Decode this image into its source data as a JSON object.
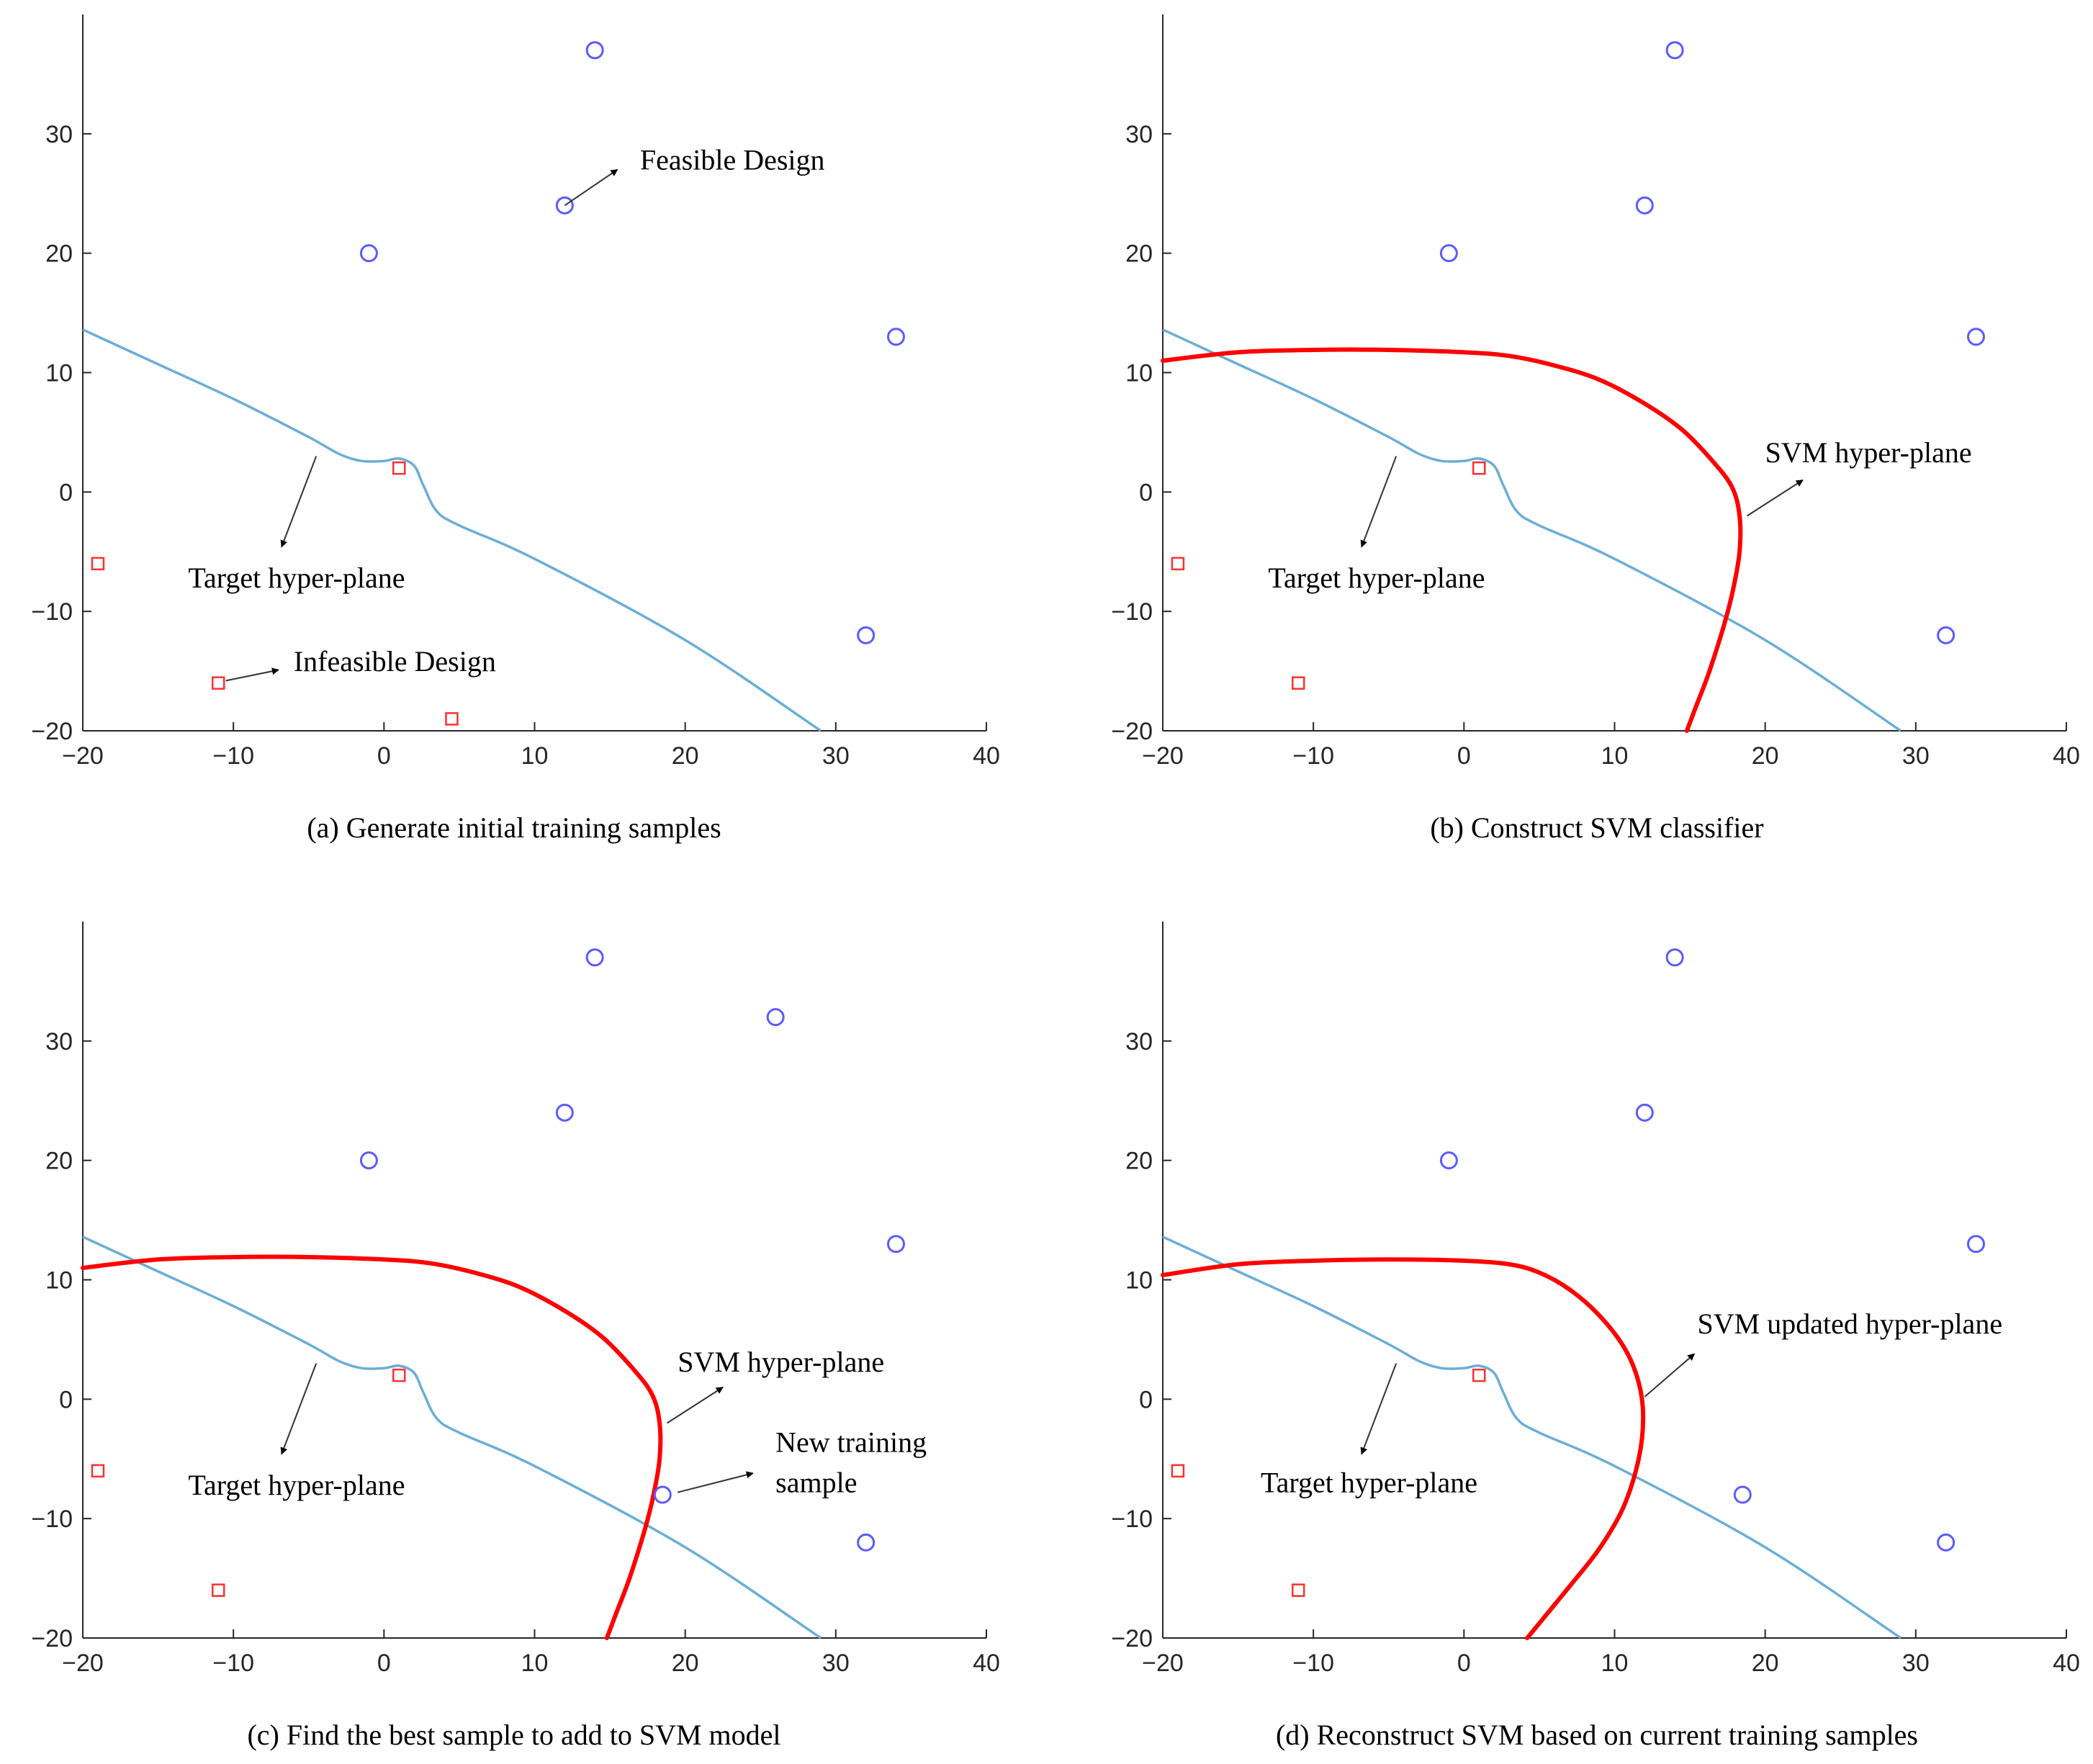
{
  "colors": {
    "target": "#6baed6",
    "svm": "#ff0000",
    "feasible": "#5b5bff",
    "infeasible": "#ff3030",
    "axis": "#262626"
  },
  "chart_data": [
    {
      "type": "scatter",
      "caption": "(a) Generate initial training samples",
      "xlim": [
        -20,
        40
      ],
      "ylim": [
        -20,
        40
      ],
      "xticks": [
        -20,
        -10,
        0,
        10,
        20,
        30,
        40
      ],
      "yticks": [
        -20,
        -10,
        0,
        10,
        20,
        30
      ],
      "feasible_points": [
        [
          14,
          37
        ],
        [
          12,
          24
        ],
        [
          -1,
          20
        ],
        [
          34,
          13
        ],
        [
          32,
          -12
        ]
      ],
      "infeasible_points": [
        [
          1,
          2
        ],
        [
          -19,
          -6
        ],
        [
          -11,
          -16
        ],
        [
          4.5,
          -19
        ]
      ],
      "target_curve": [
        [
          -20,
          13.6
        ],
        [
          -15,
          10.7
        ],
        [
          -10,
          7.8
        ],
        [
          -5,
          4.6
        ],
        [
          -3,
          3.2
        ],
        [
          -1.5,
          2.6
        ],
        [
          0,
          2.6
        ],
        [
          1,
          2.8
        ],
        [
          2,
          2.2
        ],
        [
          2.6,
          0.6
        ],
        [
          3.5,
          -1.6
        ],
        [
          5,
          -2.8
        ],
        [
          10,
          -5.6
        ],
        [
          20,
          -12.4
        ],
        [
          29,
          -20
        ]
      ],
      "svm_curve": [],
      "annotations": [
        {
          "text": "Feasible Design",
          "x": 17,
          "y": 27,
          "arrow": [
            [
              12,
              24
            ],
            [
              15.5,
              27
            ]
          ]
        },
        {
          "text": "Target hyper-plane",
          "x": -13,
          "y": -8,
          "arrow": [
            [
              -4.5,
              3
            ],
            [
              -6.8,
              -4.6
            ]
          ]
        },
        {
          "text": "Infeasible Design",
          "x": -6,
          "y": -15,
          "arrow": [
            [
              -10.5,
              -15.8
            ],
            [
              -7,
              -14.9
            ]
          ]
        }
      ]
    },
    {
      "type": "scatter",
      "caption": "(b) Construct SVM classifier",
      "xlim": [
        -20,
        40
      ],
      "ylim": [
        -20,
        40
      ],
      "xticks": [
        -20,
        -10,
        0,
        10,
        20,
        30,
        40
      ],
      "yticks": [
        -20,
        -10,
        0,
        10,
        20,
        30
      ],
      "feasible_points": [
        [
          14,
          37
        ],
        [
          12,
          24
        ],
        [
          -1,
          20
        ],
        [
          34,
          13
        ],
        [
          32,
          -12
        ]
      ],
      "infeasible_points": [
        [
          1,
          2
        ],
        [
          -19,
          -6
        ],
        [
          -11,
          -16
        ]
      ],
      "target_curve": [
        [
          -20,
          13.6
        ],
        [
          -15,
          10.7
        ],
        [
          -10,
          7.8
        ],
        [
          -5,
          4.6
        ],
        [
          -3,
          3.2
        ],
        [
          -1.5,
          2.6
        ],
        [
          0,
          2.6
        ],
        [
          1,
          2.8
        ],
        [
          2,
          2.2
        ],
        [
          2.6,
          0.6
        ],
        [
          3.5,
          -1.6
        ],
        [
          5,
          -2.8
        ],
        [
          10,
          -5.6
        ],
        [
          20,
          -12.4
        ],
        [
          29,
          -20
        ]
      ],
      "svm_curve": [
        [
          -20,
          11
        ],
        [
          -15,
          11.7
        ],
        [
          -10,
          11.9
        ],
        [
          -5,
          11.9
        ],
        [
          0,
          11.7
        ],
        [
          3,
          11.4
        ],
        [
          6,
          10.6
        ],
        [
          9,
          9.4
        ],
        [
          12,
          7.4
        ],
        [
          14.5,
          5.2
        ],
        [
          16.5,
          2.6
        ],
        [
          17.8,
          0.4
        ],
        [
          18.3,
          -2
        ],
        [
          18.3,
          -5
        ],
        [
          17.9,
          -8
        ],
        [
          17.3,
          -11
        ],
        [
          16.3,
          -15
        ],
        [
          15.4,
          -18
        ],
        [
          14.8,
          -20
        ]
      ],
      "annotations": [
        {
          "text": "SVM hyper-plane",
          "x": 20,
          "y": 2.5,
          "arrow": [
            [
              18.8,
              -2
            ],
            [
              22.5,
              1
            ]
          ]
        },
        {
          "text": "Target hyper-plane",
          "x": -13,
          "y": -8,
          "arrow": [
            [
              -4.5,
              3
            ],
            [
              -6.8,
              -4.6
            ]
          ]
        }
      ]
    },
    {
      "type": "scatter",
      "caption": "(c) Find the best sample to add to SVM model",
      "xlim": [
        -20,
        40
      ],
      "ylim": [
        -20,
        40
      ],
      "xticks": [
        -20,
        -10,
        0,
        10,
        20,
        30,
        40
      ],
      "yticks": [
        -20,
        -10,
        0,
        10,
        20,
        30
      ],
      "feasible_points": [
        [
          14,
          37
        ],
        [
          26,
          32
        ],
        [
          12,
          24
        ],
        [
          -1,
          20
        ],
        [
          34,
          13
        ],
        [
          18.5,
          -8
        ],
        [
          32,
          -12
        ]
      ],
      "infeasible_points": [
        [
          1,
          2
        ],
        [
          -19,
          -6
        ],
        [
          -11,
          -16
        ]
      ],
      "target_curve": [
        [
          -20,
          13.6
        ],
        [
          -15,
          10.7
        ],
        [
          -10,
          7.8
        ],
        [
          -5,
          4.6
        ],
        [
          -3,
          3.2
        ],
        [
          -1.5,
          2.6
        ],
        [
          0,
          2.6
        ],
        [
          1,
          2.8
        ],
        [
          2,
          2.2
        ],
        [
          2.6,
          0.6
        ],
        [
          3.5,
          -1.6
        ],
        [
          5,
          -2.8
        ],
        [
          10,
          -5.6
        ],
        [
          20,
          -12.4
        ],
        [
          29,
          -20
        ]
      ],
      "svm_curve": [
        [
          -20,
          11
        ],
        [
          -15,
          11.7
        ],
        [
          -10,
          11.9
        ],
        [
          -5,
          11.9
        ],
        [
          0,
          11.7
        ],
        [
          3,
          11.4
        ],
        [
          6,
          10.6
        ],
        [
          9,
          9.4
        ],
        [
          12,
          7.4
        ],
        [
          14.5,
          5.2
        ],
        [
          16.5,
          2.6
        ],
        [
          17.8,
          0.4
        ],
        [
          18.3,
          -2
        ],
        [
          18.3,
          -5
        ],
        [
          17.9,
          -8
        ],
        [
          17.3,
          -11
        ],
        [
          16.3,
          -15
        ],
        [
          15.4,
          -18
        ],
        [
          14.8,
          -20
        ]
      ],
      "annotations": [
        {
          "text": "SVM hyper-plane",
          "x": 19.5,
          "y": 2.3,
          "arrow": [
            [
              18.8,
              -2
            ],
            [
              22.5,
              1
            ]
          ]
        },
        {
          "text": "New training",
          "x": 26,
          "y": -4.4,
          "arrow": [
            [
              19.5,
              -7.8
            ],
            [
              24.5,
              -6.2
            ]
          ]
        },
        {
          "text": "sample",
          "x": 26,
          "y": -7.8,
          "arrow": []
        },
        {
          "text": "Target hyper-plane",
          "x": -13,
          "y": -8,
          "arrow": [
            [
              -4.5,
              3
            ],
            [
              -6.8,
              -4.6
            ]
          ]
        }
      ]
    },
    {
      "type": "scatter",
      "caption": "(d) Reconstruct SVM based on current training samples",
      "xlim": [
        -20,
        40
      ],
      "ylim": [
        -20,
        40
      ],
      "xticks": [
        -20,
        -10,
        0,
        10,
        20,
        30,
        40
      ],
      "yticks": [
        -20,
        -10,
        0,
        10,
        20,
        30
      ],
      "feasible_points": [
        [
          14,
          37
        ],
        [
          12,
          24
        ],
        [
          -1,
          20
        ],
        [
          34,
          13
        ],
        [
          18.5,
          -8
        ],
        [
          32,
          -12
        ]
      ],
      "infeasible_points": [
        [
          1,
          2
        ],
        [
          -19,
          -6
        ],
        [
          -11,
          -16
        ]
      ],
      "target_curve": [
        [
          -20,
          13.6
        ],
        [
          -15,
          10.7
        ],
        [
          -10,
          7.8
        ],
        [
          -5,
          4.6
        ],
        [
          -3,
          3.2
        ],
        [
          -1.5,
          2.6
        ],
        [
          0,
          2.6
        ],
        [
          1,
          2.8
        ],
        [
          2,
          2.2
        ],
        [
          2.6,
          0.6
        ],
        [
          3.5,
          -1.6
        ],
        [
          5,
          -2.8
        ],
        [
          10,
          -5.6
        ],
        [
          20,
          -12.4
        ],
        [
          29,
          -20
        ]
      ],
      "svm_curve": [
        [
          -20,
          10.4
        ],
        [
          -15,
          11.3
        ],
        [
          -10,
          11.6
        ],
        [
          -5,
          11.7
        ],
        [
          0,
          11.6
        ],
        [
          3,
          11.3
        ],
        [
          5,
          10.6
        ],
        [
          7,
          9.2
        ],
        [
          9,
          7
        ],
        [
          10.7,
          4.2
        ],
        [
          11.6,
          1.4
        ],
        [
          11.9,
          -1.5
        ],
        [
          11.6,
          -5
        ],
        [
          10.6,
          -9
        ],
        [
          9,
          -12.5
        ],
        [
          6.8,
          -16
        ],
        [
          4.2,
          -20
        ]
      ],
      "annotations": [
        {
          "text": "SVM updated hyper-plane",
          "x": 15.5,
          "y": 5.5,
          "arrow": [
            [
              12,
              0.2
            ],
            [
              15.3,
              3.8
            ]
          ]
        },
        {
          "text": "Target hyper-plane",
          "x": -13.5,
          "y": -7.8,
          "arrow": [
            [
              -4.5,
              3
            ],
            [
              -6.8,
              -4.6
            ]
          ]
        }
      ]
    }
  ]
}
